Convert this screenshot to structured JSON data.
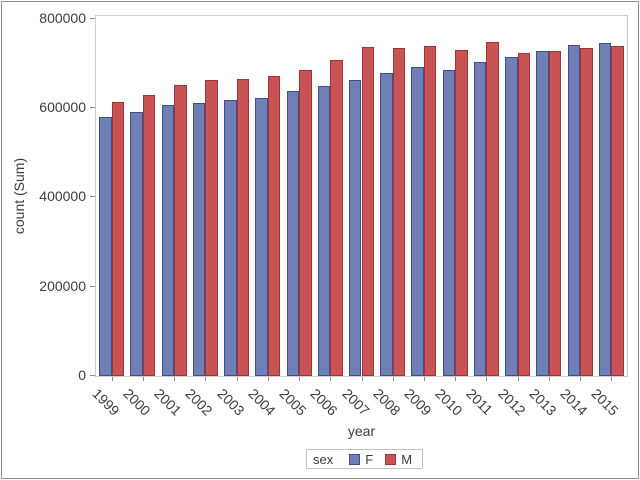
{
  "chart_data": {
    "type": "bar",
    "title": "",
    "xlabel": "year",
    "ylabel": "count (Sum)",
    "categories": [
      "1999",
      "2000",
      "2001",
      "2002",
      "2003",
      "2004",
      "2005",
      "2006",
      "2007",
      "2008",
      "2009",
      "2010",
      "2011",
      "2012",
      "2013",
      "2014",
      "2015"
    ],
    "series": [
      {
        "name": "F",
        "color": "#7080B5",
        "border_color": "#3E4F8E",
        "values": [
          580000,
          591000,
          606000,
          611000,
          617000,
          623000,
          638000,
          649000,
          662000,
          679000,
          692000,
          685000,
          704000,
          715000,
          728000,
          741000,
          746000
        ]
      },
      {
        "name": "M",
        "color": "#C95355",
        "border_color": "#9E3638",
        "values": [
          614000,
          630000,
          651000,
          662000,
          666000,
          672000,
          685000,
          708000,
          736000,
          734000,
          738000,
          730000,
          747000,
          723000,
          727000,
          734000,
          738000
        ]
      }
    ],
    "ylim": [
      0,
      800000
    ],
    "yticks": [
      0,
      200000,
      400000,
      600000,
      800000
    ],
    "grid": "off",
    "legend": {
      "title": "sex",
      "position": "bottom-center"
    }
  },
  "frame": {
    "border_color": "#8c8c8c",
    "axis_line_color": "#cbcbcb",
    "tick_color": "#8c8c8c",
    "text_color": "#3c3c3c"
  }
}
